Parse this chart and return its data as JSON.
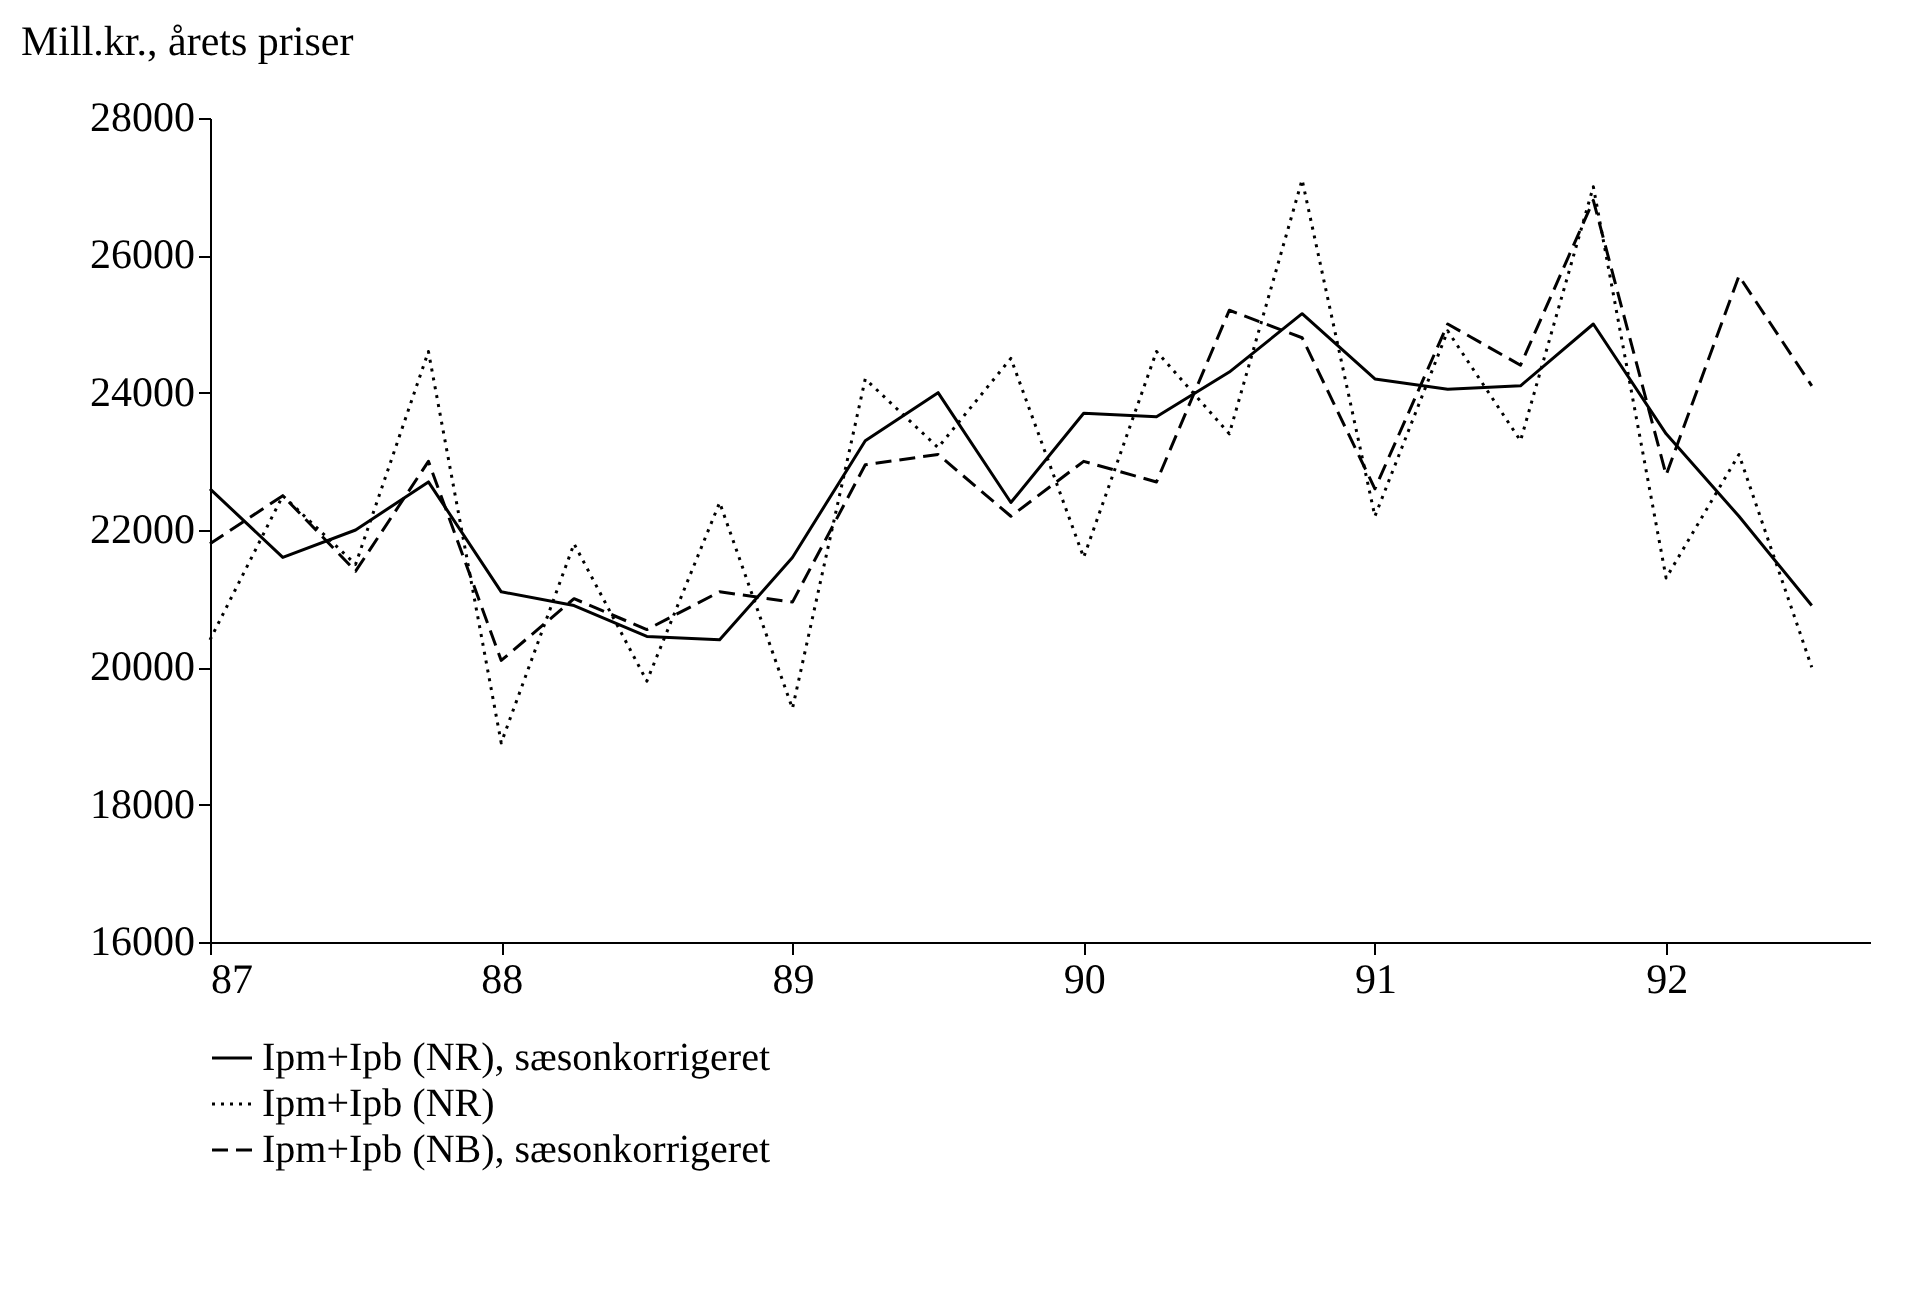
{
  "chart_data": {
    "type": "line",
    "ylabel": "Mill.kr., årets priser",
    "x": [
      87,
      87.25,
      87.5,
      87.75,
      88,
      88.25,
      88.5,
      88.75,
      89,
      89.25,
      89.5,
      89.75,
      90,
      90.25,
      90.5,
      90.75,
      91,
      91.25,
      91.5,
      91.75,
      92,
      92.25,
      92.5
    ],
    "series": [
      {
        "name": "Ipm+Ipb (NR), sæsonkorrigeret",
        "color": "#000000",
        "line_style": "solid",
        "values": [
          22600,
          21600,
          22000,
          22700,
          21100,
          20900,
          20450,
          20400,
          21600,
          23300,
          24000,
          22400,
          23700,
          23650,
          24300,
          25150,
          24200,
          24050,
          24100,
          25000,
          23400,
          22200,
          20900
        ]
      },
      {
        "name": "Ipm+Ipb (NR)",
        "color": "#000000",
        "line_style": "dotted",
        "values": [
          20400,
          22500,
          21500,
          24600,
          18900,
          21800,
          19800,
          22400,
          19400,
          24200,
          23200,
          24500,
          21600,
          24600,
          23400,
          27100,
          22200,
          24900,
          23300,
          27000,
          21300,
          23100,
          20000
        ]
      },
      {
        "name": "Ipm+Ipb (NB), sæsonkorrigeret",
        "color": "#000000",
        "line_style": "dashed",
        "values": [
          21800,
          22500,
          21400,
          23000,
          20100,
          21000,
          20550,
          21100,
          20950,
          22950,
          23100,
          22200,
          23000,
          22700,
          25200,
          24800,
          22600,
          25000,
          24400,
          26800,
          22800,
          25700,
          24100
        ]
      }
    ],
    "xlim": [
      87,
      92.7
    ],
    "xticks": [
      87,
      88,
      89,
      90,
      91,
      92
    ],
    "ylim": [
      16000,
      28000
    ],
    "yticks": [
      16000,
      18000,
      20000,
      22000,
      24000,
      26000,
      28000
    ],
    "grid": false,
    "legend": "bottom left"
  }
}
